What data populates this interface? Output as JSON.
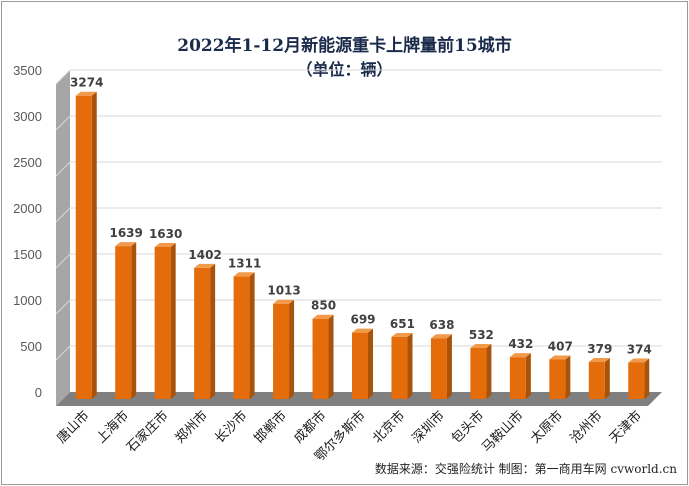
{
  "chart_data": {
    "type": "bar",
    "title": "2022年1-12月新能源重卡上牌量前15城市",
    "subtitle": "（单位：辆）",
    "xlabel": "",
    "ylabel": "",
    "categories": [
      "唐山市",
      "上海市",
      "石家庄市",
      "郑州市",
      "长沙市",
      "邯郸市",
      "成都市",
      "鄂尔多斯市",
      "北京市",
      "深圳市",
      "包头市",
      "马鞍山市",
      "太原市",
      "沧州市",
      "天津市"
    ],
    "values": [
      3274,
      1639,
      1630,
      1402,
      1311,
      1013,
      850,
      699,
      651,
      638,
      532,
      432,
      407,
      379,
      374
    ],
    "ylim": [
      0,
      3500
    ],
    "yticks": [
      0,
      500,
      1000,
      1500,
      2000,
      2500,
      3000,
      3500
    ],
    "grid": true,
    "legend": "none",
    "data_labels": true
  },
  "source_note": "数据来源：交强险统计    制图：第一商用车网 cvworld.cn",
  "colors": {
    "bar_front": "#E46C0A",
    "bar_side": "#A9520A",
    "bar_top": "#F29A4B",
    "wall": "#A6A6A6",
    "wall_dark": "#7F7F7F",
    "gridline": "#D9D9D9",
    "axis_text": "#595959",
    "label_text": "#404040"
  }
}
